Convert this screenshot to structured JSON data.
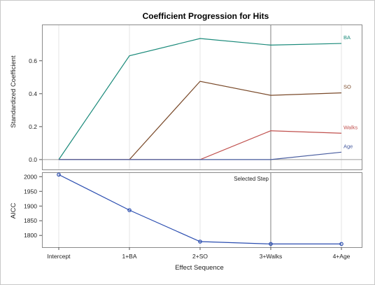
{
  "chart_data": [
    {
      "type": "line",
      "title": "Coefficient Progression for Hits",
      "ylabel": "Standardized Coefficient",
      "ylim": [
        -0.06,
        0.82
      ],
      "yticks": [
        0.0,
        0.2,
        0.4,
        0.6
      ],
      "ytick_labels": [
        "0.0",
        "0.2",
        "0.4",
        "0.6"
      ],
      "categories": [
        "Intercept",
        "1+BA",
        "2+SO",
        "3+Walks",
        "4+Age"
      ],
      "series": [
        {
          "name": "BA",
          "color": "#1a8a7a",
          "values": [
            0.0,
            0.63,
            0.735,
            0.695,
            0.705
          ]
        },
        {
          "name": "SO",
          "color": "#7a4a2a",
          "values": [
            0.0,
            0.0,
            0.475,
            0.39,
            0.405
          ]
        },
        {
          "name": "Walks",
          "color": "#c0504d",
          "values": [
            0.0,
            0.0,
            0.0,
            0.175,
            0.16
          ]
        },
        {
          "name": "Age",
          "color": "#4a5ea0",
          "values": [
            0.0,
            0.0,
            0.0,
            0.0,
            0.045
          ]
        }
      ],
      "selected_step": "3+Walks",
      "grid": true
    },
    {
      "type": "line",
      "ylabel": "AICC",
      "xlabel": "Effect Sequence",
      "ylim": [
        1760,
        2015
      ],
      "yticks": [
        1800,
        1850,
        1900,
        1950,
        2000
      ],
      "ytick_labels": [
        "1800",
        "1850",
        "1900",
        "1950",
        "2000"
      ],
      "categories": [
        "Intercept",
        "1+BA",
        "2+SO",
        "3+Walks",
        "4+Age"
      ],
      "series": [
        {
          "color": "#2a4db0",
          "values": [
            2007,
            1886,
            1779,
            1771,
            1771
          ]
        }
      ],
      "annotation": "Selected Step",
      "selected_step": "3+Walks",
      "grid": true
    }
  ]
}
